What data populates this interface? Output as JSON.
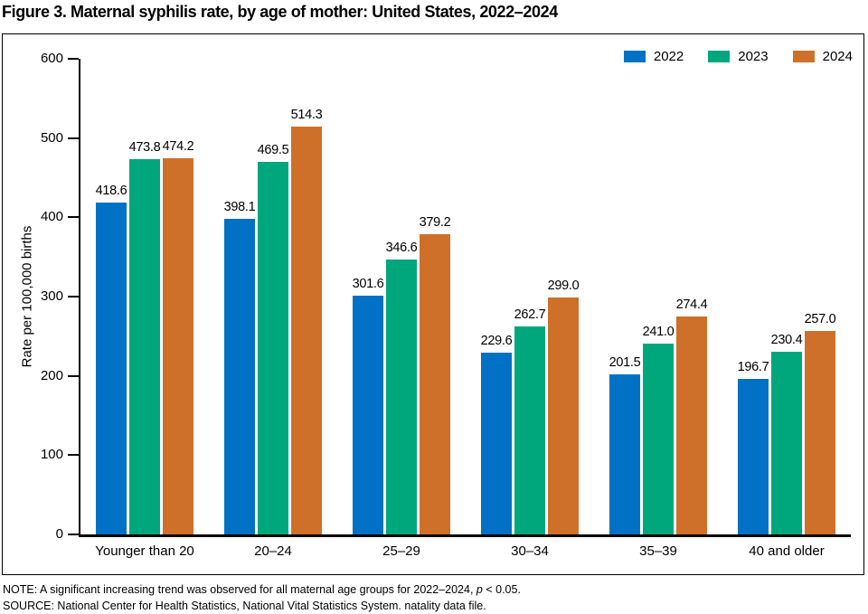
{
  "chart_data": {
    "type": "bar",
    "title": "Figure 3. Maternal syphilis rate, by age of mother: United States, 2022–2024",
    "categories": [
      "Younger than 20",
      "20–24",
      "25–29",
      "30–34",
      "35–39",
      "40 and older"
    ],
    "series": [
      {
        "name": "2022",
        "color": "#0071C5",
        "values": [
          418.6,
          398.1,
          301.6,
          229.6,
          201.5,
          196.7
        ]
      },
      {
        "name": "2023",
        "color": "#00A77D",
        "values": [
          473.8,
          469.5,
          346.6,
          262.7,
          241.0,
          230.4
        ]
      },
      {
        "name": "2024",
        "color": "#CE7029",
        "values": [
          474.2,
          514.3,
          379.2,
          299.0,
          274.4,
          257.0
        ]
      }
    ],
    "xlabel": "",
    "ylabel": "Rate per 100,000 births",
    "ylim": [
      0,
      600
    ],
    "yticks": [
      0,
      100,
      200,
      300,
      400,
      500,
      600
    ],
    "grid": false,
    "legend_position": "top-right",
    "value_labels": true
  },
  "footer": {
    "note_prefix": "NOTE: A significant increasing trend was observed for all maternal age groups for 2022–2024, ",
    "note_stat": "p",
    "note_suffix": " < 0.05.",
    "source": "SOURCE: National Center for Health Statistics, National Vital Statistics System. natality data file."
  }
}
